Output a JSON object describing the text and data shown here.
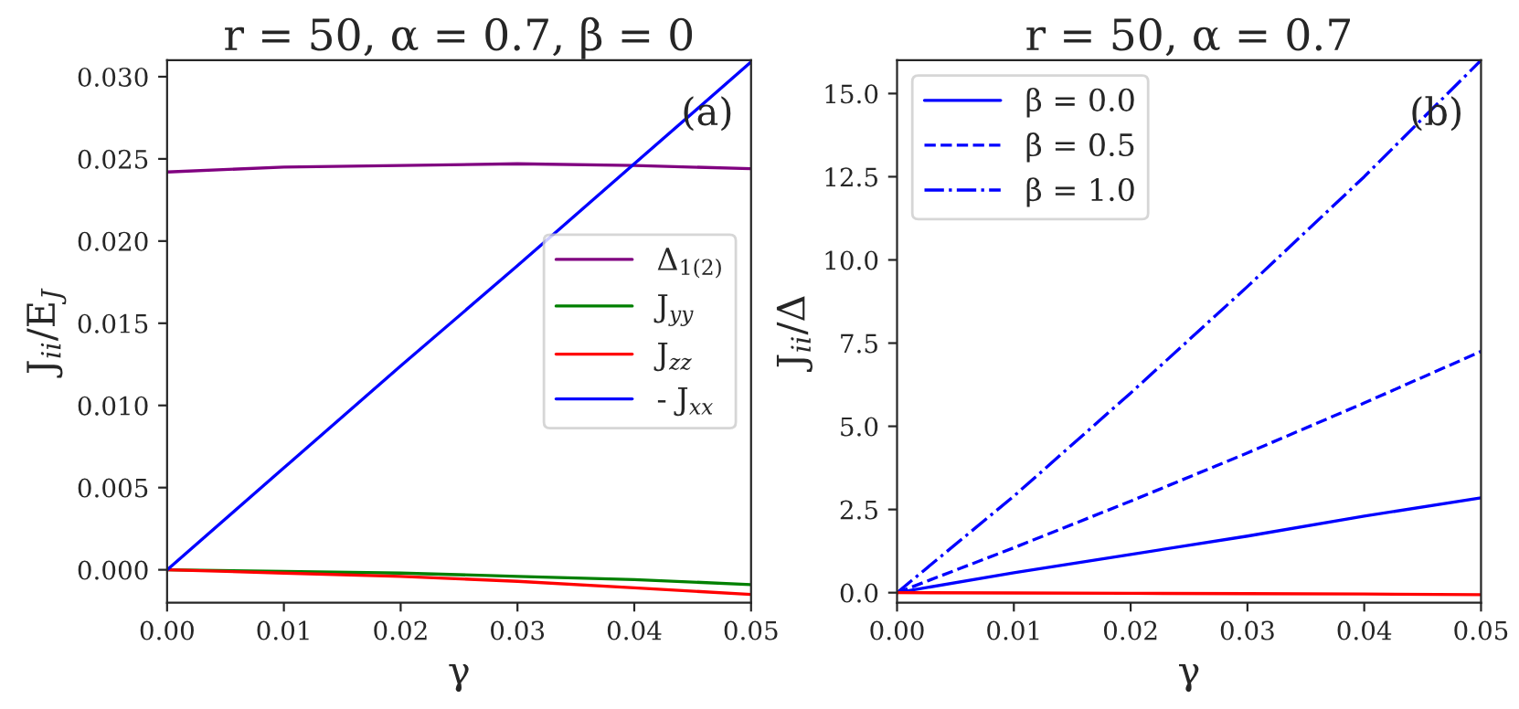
{
  "chart_data": [
    {
      "type": "line",
      "title": "r = 50, α = 0.7, β = 0",
      "xlabel": "γ",
      "ylabel": "J$_{ii}$/E$_{J}$",
      "annotations": [
        "(a)"
      ],
      "x": [
        0,
        0.01,
        0.02,
        0.03,
        0.04,
        0.05
      ],
      "series": [
        {
          "name": "Δ$_{1(2)}$",
          "color": "#800080",
          "values": [
            0.0242,
            0.0245,
            0.0246,
            0.0247,
            0.0246,
            0.0244
          ]
        },
        {
          "name": "J$_{yy}$",
          "color": "#008000",
          "values": [
            0,
            -0.0001,
            -0.0002,
            -0.0004,
            -0.0006,
            -0.0009
          ]
        },
        {
          "name": "J$_{zz}$",
          "color": "#ff0000",
          "values": [
            0,
            -0.0002,
            -0.0004,
            -0.0007,
            -0.0011,
            -0.0015
          ]
        },
        {
          "name": "- J$_{xx}$",
          "color": "#0000ff",
          "values": [
            0,
            0.0062,
            0.0124,
            0.0185,
            0.0247,
            0.0309
          ]
        }
      ],
      "xlim": [
        0,
        0.05
      ],
      "ylim": [
        -0.002,
        0.031
      ],
      "xticks": [
        {
          "value": 0,
          "label": "0.00"
        },
        {
          "value": 0.01,
          "label": "0.01"
        },
        {
          "value": 0.02,
          "label": "0.02"
        },
        {
          "value": 0.03,
          "label": "0.03"
        },
        {
          "value": 0.04,
          "label": "0.04"
        },
        {
          "value": 0.05,
          "label": "0.05"
        }
      ],
      "yticks": [
        {
          "value": 0,
          "label": "0.000"
        },
        {
          "value": 0.005,
          "label": "0.005"
        },
        {
          "value": 0.01,
          "label": "0.010"
        },
        {
          "value": 0.015,
          "label": "0.015"
        },
        {
          "value": 0.02,
          "label": "0.020"
        },
        {
          "value": 0.025,
          "label": "0.025"
        },
        {
          "value": 0.03,
          "label": "0.030"
        }
      ],
      "grid": false,
      "legend": "center right"
    },
    {
      "type": "line",
      "title": "r = 50, α = 0.7",
      "xlabel": "γ",
      "ylabel": "J$_{ii}$/Δ",
      "annotations": [
        "(b)"
      ],
      "x": [
        0,
        0.01,
        0.02,
        0.03,
        0.04,
        0.05
      ],
      "series": [
        {
          "name": "β = 0.0",
          "color": "#0000ff",
          "line_style": "solid",
          "values": [
            0,
            0.6,
            1.15,
            1.7,
            2.3,
            2.85
          ]
        },
        {
          "name": "β = 0.5",
          "color": "#0000ff",
          "line_style": "dashed",
          "values": [
            0,
            1.35,
            2.75,
            4.2,
            5.7,
            7.25
          ]
        },
        {
          "name": "β = 1.0",
          "color": "#0000ff",
          "line_style": "dashdot",
          "values": [
            0,
            2.9,
            6.0,
            9.2,
            12.5,
            16.0
          ]
        },
        {
          "color": "#ff0000",
          "line_style": "solid",
          "values": [
            0,
            -0.01,
            -0.02,
            -0.03,
            -0.04,
            -0.06
          ]
        }
      ],
      "xlim": [
        0,
        0.05
      ],
      "ylim": [
        -0.3,
        16
      ],
      "xticks": [
        {
          "value": 0,
          "label": "0.00"
        },
        {
          "value": 0.01,
          "label": "0.01"
        },
        {
          "value": 0.02,
          "label": "0.02"
        },
        {
          "value": 0.03,
          "label": "0.03"
        },
        {
          "value": 0.04,
          "label": "0.04"
        },
        {
          "value": 0.05,
          "label": "0.05"
        }
      ],
      "yticks": [
        {
          "value": 0,
          "label": "0.0"
        },
        {
          "value": 2.5,
          "label": "2.5"
        },
        {
          "value": 5,
          "label": "5.0"
        },
        {
          "value": 7.5,
          "label": "7.5"
        },
        {
          "value": 10,
          "label": "10.0"
        },
        {
          "value": 12.5,
          "label": "12.5"
        },
        {
          "value": 15,
          "label": "15.0"
        }
      ],
      "grid": false,
      "legend": "upper left"
    }
  ]
}
